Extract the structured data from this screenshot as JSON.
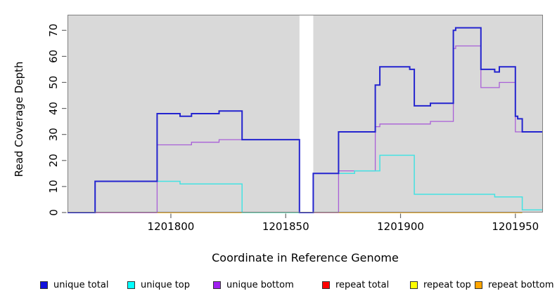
{
  "chart_data": {
    "type": "line",
    "interpolation": "step-after",
    "title": "",
    "xlabel": "Coordinate in Reference Genome",
    "ylabel": "Read Coverage Depth",
    "x_ticks": [
      1201800,
      1201850,
      1201900,
      1201950
    ],
    "y_ticks": [
      0,
      10,
      20,
      30,
      40,
      50,
      60,
      70
    ],
    "x_range": [
      1201755,
      1201962
    ],
    "y_range": [
      0,
      76
    ],
    "plot_bg": "#D9D9D9",
    "gap_region": [
      1201856,
      1201862
    ],
    "grid": "off",
    "legend_position": "bottom",
    "series": [
      {
        "name": "repeat total",
        "color": "#D92B45",
        "width": 1.4,
        "points": [
          [
            1201755,
            0
          ],
          [
            1201794,
            0
          ]
        ]
      },
      {
        "name": "repeat top",
        "color": "#FFFF00",
        "width": 1.4,
        "points": [
          [
            1201794,
            0
          ],
          [
            1201953,
            0
          ]
        ]
      },
      {
        "name": "repeat bottom",
        "color": "#FFA018",
        "width": 1.6,
        "points": [
          [
            1201794,
            0
          ],
          [
            1201953,
            0
          ]
        ]
      },
      {
        "name": "unique bottom",
        "color": "#A95FD8",
        "width": 1.3,
        "points": [
          [
            1201755,
            0
          ],
          [
            1201794,
            26
          ],
          [
            1201809,
            27
          ],
          [
            1201821,
            28
          ],
          [
            1201856,
            0
          ],
          [
            1201873,
            16
          ],
          [
            1201889,
            33
          ],
          [
            1201891,
            34
          ],
          [
            1201913,
            35
          ],
          [
            1201923,
            63
          ],
          [
            1201924,
            64
          ],
          [
            1201935,
            48
          ],
          [
            1201943,
            50
          ],
          [
            1201950,
            31
          ],
          [
            1201962,
            31
          ]
        ]
      },
      {
        "name": "unique top",
        "color": "#45E2E2",
        "width": 1.5,
        "points": [
          [
            1201755,
            0
          ],
          [
            1201767,
            12
          ],
          [
            1201804,
            11
          ],
          [
            1201831,
            0
          ],
          [
            1201862,
            15
          ],
          [
            1201880,
            16
          ],
          [
            1201891,
            22
          ],
          [
            1201906,
            7
          ],
          [
            1201941,
            6
          ],
          [
            1201953,
            1
          ],
          [
            1201962,
            1
          ]
        ]
      },
      {
        "name": "unique total",
        "color": "#2424CF",
        "width": 2,
        "points": [
          [
            1201755,
            0
          ],
          [
            1201767,
            12
          ],
          [
            1201794,
            38
          ],
          [
            1201804,
            37
          ],
          [
            1201809,
            38
          ],
          [
            1201821,
            39
          ],
          [
            1201831,
            28
          ],
          [
            1201856,
            0
          ],
          [
            1201862,
            15
          ],
          [
            1201873,
            31
          ],
          [
            1201889,
            49
          ],
          [
            1201891,
            56
          ],
          [
            1201904,
            55
          ],
          [
            1201906,
            41
          ],
          [
            1201913,
            42
          ],
          [
            1201923,
            70
          ],
          [
            1201924,
            71
          ],
          [
            1201935,
            55
          ],
          [
            1201941,
            54
          ],
          [
            1201943,
            56
          ],
          [
            1201950,
            37
          ],
          [
            1201951,
            36
          ],
          [
            1201953,
            31
          ],
          [
            1201962,
            31
          ]
        ]
      }
    ]
  },
  "legend": {
    "items": [
      {
        "label": "unique total",
        "color": "#1111DD"
      },
      {
        "label": "unique top",
        "color": "#00FFFF"
      },
      {
        "label": "unique bottom",
        "color": "#A020F0"
      },
      {
        "label": "repeat total",
        "color": "#FF0000"
      },
      {
        "label": "repeat top",
        "color": "#FFFF00"
      },
      {
        "label": "repeat bottom",
        "color": "#FFA500"
      }
    ]
  }
}
